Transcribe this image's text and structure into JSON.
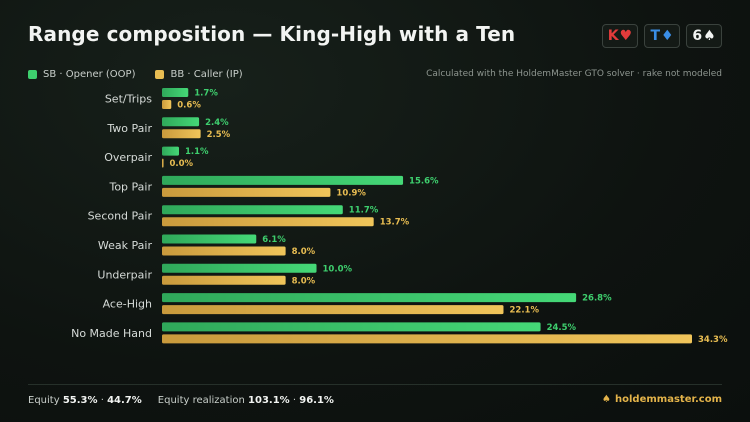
{
  "header": {
    "title": "Range composition — King-High with a Ten",
    "board": [
      {
        "rank": "K",
        "suit": "♥",
        "color": "#e23b3b"
      },
      {
        "rank": "T",
        "suit": "♦",
        "color": "#3a8ee6"
      },
      {
        "rank": "6",
        "suit": "♠",
        "color": "#f2f4f2"
      }
    ]
  },
  "legend": {
    "sb": {
      "label": "SB · Opener (OOP)",
      "color": "#3ecf6e"
    },
    "bb": {
      "label": "BB · Caller (IP)",
      "color": "#e8bd52"
    }
  },
  "note": "Calculated with the HoldemMaster GTO solver · rake not modeled",
  "chart_data": {
    "type": "bar",
    "orientation": "horizontal",
    "categories": [
      "Set/Trips",
      "Two Pair",
      "Overpair",
      "Top Pair",
      "Second Pair",
      "Weak Pair",
      "Underpair",
      "Ace-High",
      "No Made Hand"
    ],
    "series": [
      {
        "name": "SB · Opener (OOP)",
        "color": "#3ecf6e",
        "values": [
          1.7,
          2.4,
          1.1,
          15.6,
          11.7,
          6.1,
          10.0,
          26.8,
          24.5
        ],
        "labels": [
          "1.7%",
          "2.4%",
          "1.1%",
          "15.6%",
          "11.7%",
          "6.1%",
          "10.0%",
          "26.8%",
          "24.5%"
        ]
      },
      {
        "name": "BB · Caller (IP)",
        "color": "#e8bd52",
        "values": [
          0.6,
          2.5,
          0.0,
          10.9,
          13.7,
          8.0,
          8.0,
          22.1,
          34.3
        ],
        "labels": [
          "0.6%",
          "2.5%",
          "0.0%",
          "10.9%",
          "13.7%",
          "8.0%",
          "8.0%",
          "22.1%",
          "34.3%"
        ]
      }
    ],
    "xlim": [
      0,
      34.3
    ],
    "grid": false,
    "legend_position": "top-left"
  },
  "footer": {
    "equity_label": "Equity",
    "equity_sb": "55.3%",
    "equity_sep": "·",
    "equity_bb": "44.7%",
    "realization_label": "Equity realization",
    "realization_sb": "103.1%",
    "realization_sep": "·",
    "realization_bb": "96.1%",
    "brand": "holdemmaster.com",
    "brand_icon": "spade-icon"
  }
}
